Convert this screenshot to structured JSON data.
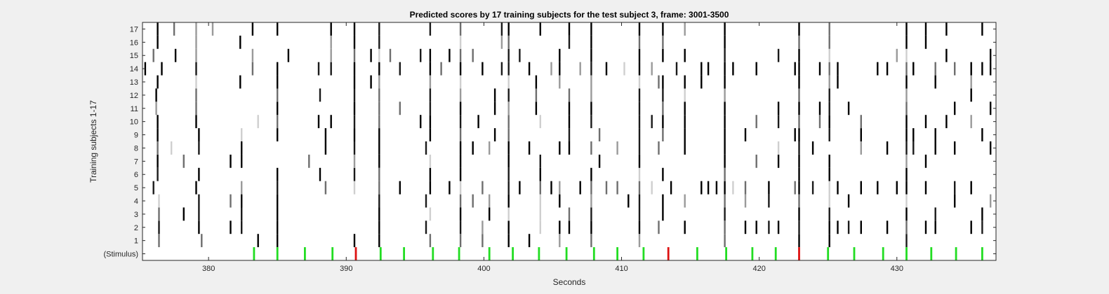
{
  "chart_data": {
    "type": "heatmap",
    "title": "Predicted scores by 17 training subjects for the test subject 3, frame: 3001-3500",
    "xlabel": "Seconds",
    "ylabel": "Training subjects 1-17",
    "xlim": [
      375.2,
      437.2
    ],
    "x_ticks": [
      380,
      390,
      400,
      410,
      420,
      430
    ],
    "y_tick_labels": [
      "(Stimulus)",
      "1",
      "2",
      "3",
      "4",
      "5",
      "6",
      "7",
      "8",
      "9",
      "10",
      "11",
      "12",
      "13",
      "14",
      "15",
      "16",
      "17"
    ],
    "grid": false,
    "legend": "none",
    "colormap": "gray (white = 0, black = 1)",
    "subject_events": [
      {
        "t": 375.4,
        "rows": [
          14
        ]
      },
      {
        "t": 376.0,
        "rows": [
          5,
          15
        ]
      },
      {
        "t": 376.2,
        "rows": [
          11,
          12
        ]
      },
      {
        "t": 376.3,
        "rows": [
          6,
          7,
          8,
          9,
          10,
          13,
          16,
          17
        ]
      },
      {
        "t": 376.4,
        "rows": [
          1,
          2,
          3,
          4
        ]
      },
      {
        "t": 376.6,
        "rows": [
          14
        ]
      },
      {
        "t": 377.3,
        "rows": [
          8
        ]
      },
      {
        "t": 377.5,
        "rows": [
          17
        ]
      },
      {
        "t": 377.6,
        "rows": [
          15
        ]
      },
      {
        "t": 378.2,
        "rows": [
          3,
          7
        ]
      },
      {
        "t": 379.1,
        "rows": [
          5,
          10,
          11,
          12,
          13,
          14,
          15,
          16,
          17
        ]
      },
      {
        "t": 379.3,
        "rows": [
          2,
          3,
          4,
          6,
          8,
          9
        ]
      },
      {
        "t": 379.5,
        "rows": [
          1
        ]
      },
      {
        "t": 380.3,
        "rows": [
          17
        ]
      },
      {
        "t": 381.6,
        "rows": [
          2,
          4,
          7
        ]
      },
      {
        "t": 382.3,
        "rows": [
          13,
          16
        ]
      },
      {
        "t": 382.4,
        "rows": [
          2,
          3,
          4,
          5,
          7,
          8,
          9
        ]
      },
      {
        "t": 383.2,
        "rows": [
          14,
          15,
          17
        ]
      },
      {
        "t": 383.6,
        "rows": [
          1,
          10
        ]
      },
      {
        "t": 385.0,
        "rows": [
          1,
          2,
          3,
          4,
          5,
          6,
          9,
          10,
          11,
          12,
          13,
          14,
          17
        ]
      },
      {
        "t": 385.8,
        "rows": [
          15
        ]
      },
      {
        "t": 387.3,
        "rows": [
          7
        ]
      },
      {
        "t": 388.0,
        "rows": [
          10,
          14
        ]
      },
      {
        "t": 388.1,
        "rows": [
          6,
          12
        ]
      },
      {
        "t": 388.5,
        "rows": [
          5,
          8,
          9
        ]
      },
      {
        "t": 388.9,
        "rows": [
          10,
          14,
          15,
          16,
          17
        ]
      },
      {
        "t": 390.6,
        "rows": [
          1,
          5,
          6,
          7,
          8,
          9,
          10,
          11,
          12,
          13,
          14,
          15,
          16,
          17
        ]
      },
      {
        "t": 391.8,
        "rows": [
          13,
          15
        ]
      },
      {
        "t": 392.4,
        "rows": [
          1,
          2,
          3,
          4,
          5,
          6,
          7,
          8,
          9,
          10,
          11,
          12,
          13,
          14,
          15,
          16,
          17
        ]
      },
      {
        "t": 393.2,
        "rows": [
          15
        ]
      },
      {
        "t": 393.9,
        "rows": [
          5,
          11,
          14
        ]
      },
      {
        "t": 395.4,
        "rows": [
          10,
          15
        ]
      },
      {
        "t": 395.8,
        "rows": [
          2,
          4,
          8
        ]
      },
      {
        "t": 396.1,
        "rows": [
          1,
          3,
          5,
          6,
          7,
          9,
          10,
          11,
          12,
          13,
          14,
          15,
          17
        ]
      },
      {
        "t": 396.9,
        "rows": [
          14
        ]
      },
      {
        "t": 397.5,
        "rows": [
          5,
          15
        ]
      },
      {
        "t": 398.3,
        "rows": [
          1,
          2,
          3,
          4,
          5,
          6,
          7,
          8,
          9,
          10,
          11,
          12,
          13,
          14,
          15,
          16,
          17
        ]
      },
      {
        "t": 399.2,
        "rows": [
          4,
          8,
          15
        ]
      },
      {
        "t": 399.6,
        "rows": [
          10
        ]
      },
      {
        "t": 399.9,
        "rows": [
          1,
          2,
          5,
          14
        ]
      },
      {
        "t": 400.4,
        "rows": [
          3,
          4,
          8
        ]
      },
      {
        "t": 400.8,
        "rows": [
          9,
          11,
          12
        ]
      },
      {
        "t": 401.3,
        "rows": [
          14,
          16,
          17
        ]
      },
      {
        "t": 401.8,
        "rows": [
          1,
          2,
          3,
          4,
          5,
          6,
          7,
          8,
          9,
          10,
          11,
          12,
          13,
          14,
          15,
          16,
          17
        ]
      },
      {
        "t": 402.6,
        "rows": [
          5,
          15
        ]
      },
      {
        "t": 403.3,
        "rows": [
          1,
          8,
          14
        ]
      },
      {
        "t": 403.8,
        "rows": [
          11,
          12,
          13
        ]
      },
      {
        "t": 404.1,
        "rows": [
          2,
          3,
          4,
          5,
          6,
          7,
          10,
          17
        ]
      },
      {
        "t": 404.9,
        "rows": [
          5,
          14
        ]
      },
      {
        "t": 405.5,
        "rows": [
          1,
          2,
          4,
          5,
          8,
          13,
          14,
          15
        ]
      },
      {
        "t": 406.2,
        "rows": [
          2,
          3,
          8,
          9,
          10,
          11,
          12,
          16,
          17
        ]
      },
      {
        "t": 407.0,
        "rows": [
          5,
          14
        ]
      },
      {
        "t": 407.8,
        "rows": [
          1,
          2,
          3,
          4,
          5,
          6,
          8,
          10,
          11,
          12,
          13,
          14,
          15,
          16,
          17
        ]
      },
      {
        "t": 408.4,
        "rows": [
          7,
          9
        ]
      },
      {
        "t": 408.9,
        "rows": [
          5,
          14
        ]
      },
      {
        "t": 409.7,
        "rows": [
          5,
          8
        ]
      },
      {
        "t": 410.2,
        "rows": [
          14
        ]
      },
      {
        "t": 410.5,
        "rows": [
          4
        ]
      },
      {
        "t": 411.3,
        "rows": [
          1,
          2,
          3,
          4,
          5,
          6,
          7,
          8,
          9,
          10,
          11,
          12,
          13,
          14,
          15,
          16,
          17
        ]
      },
      {
        "t": 412.2,
        "rows": [
          5,
          10,
          14
        ]
      },
      {
        "t": 412.7,
        "rows": [
          2,
          8,
          13
        ]
      },
      {
        "t": 413.0,
        "rows": [
          3,
          4,
          6,
          9,
          10,
          11,
          12,
          13,
          15,
          16,
          17
        ]
      },
      {
        "t": 413.6,
        "rows": [
          5
        ]
      },
      {
        "t": 414.0,
        "rows": [
          14
        ]
      },
      {
        "t": 414.6,
        "rows": [
          2,
          4,
          8,
          9,
          10,
          11,
          12,
          13,
          15,
          17
        ]
      },
      {
        "t": 415.8,
        "rows": [
          5,
          13,
          14
        ]
      },
      {
        "t": 416.3,
        "rows": [
          5,
          14
        ]
      },
      {
        "t": 416.9,
        "rows": [
          5
        ]
      },
      {
        "t": 417.5,
        "rows": [
          1,
          2,
          3,
          4,
          5,
          6,
          7,
          8,
          9,
          10,
          11,
          12,
          13,
          14,
          15,
          16,
          17
        ]
      },
      {
        "t": 418.1,
        "rows": [
          5,
          14
        ]
      },
      {
        "t": 419.0,
        "rows": [
          2,
          4,
          5,
          9
        ]
      },
      {
        "t": 419.8,
        "rows": [
          2,
          7,
          10,
          14
        ]
      },
      {
        "t": 420.7,
        "rows": [
          2,
          4,
          5
        ]
      },
      {
        "t": 421.4,
        "rows": [
          2,
          7,
          8,
          10,
          11,
          15
        ]
      },
      {
        "t": 422.6,
        "rows": [
          5,
          9,
          14
        ]
      },
      {
        "t": 422.9,
        "rows": [
          1,
          2,
          3,
          4,
          5,
          6,
          7,
          8,
          9,
          10,
          11,
          12,
          13,
          14,
          15,
          16,
          17
        ]
      },
      {
        "t": 423.9,
        "rows": [
          5,
          8
        ]
      },
      {
        "t": 424.4,
        "rows": [
          10,
          11,
          14
        ]
      },
      {
        "t": 425.1,
        "rows": [
          1,
          2,
          3,
          4,
          5,
          6,
          7,
          9,
          10,
          11,
          12,
          13,
          14,
          15,
          16,
          17
        ]
      },
      {
        "t": 425.7,
        "rows": [
          2,
          5,
          13,
          14
        ]
      },
      {
        "t": 426.5,
        "rows": [
          2,
          4,
          11
        ]
      },
      {
        "t": 427.4,
        "rows": [
          2,
          5,
          8,
          9,
          10
        ]
      },
      {
        "t": 428.6,
        "rows": [
          5,
          14
        ]
      },
      {
        "t": 429.3,
        "rows": [
          2,
          8,
          14
        ]
      },
      {
        "t": 430.0,
        "rows": [
          5,
          15
        ]
      },
      {
        "t": 430.7,
        "rows": [
          1,
          2,
          3,
          4,
          5,
          6,
          7,
          8,
          9,
          10,
          11,
          12,
          13,
          14,
          15,
          16,
          17
        ]
      },
      {
        "t": 431.2,
        "rows": [
          8,
          9,
          14
        ]
      },
      {
        "t": 432.1,
        "rows": [
          2,
          5,
          7,
          10,
          16,
          17
        ]
      },
      {
        "t": 432.8,
        "rows": [
          2,
          3,
          8,
          9,
          13,
          14
        ]
      },
      {
        "t": 433.6,
        "rows": [
          10,
          15,
          17
        ]
      },
      {
        "t": 434.2,
        "rows": [
          4,
          5,
          8,
          11,
          14
        ]
      },
      {
        "t": 435.4,
        "rows": [
          2,
          5,
          10,
          12,
          13,
          14
        ]
      },
      {
        "t": 436.2,
        "rows": [
          2,
          3,
          9,
          14,
          17
        ]
      },
      {
        "t": 436.8,
        "rows": [
          4,
          8,
          11,
          14,
          15
        ]
      }
    ],
    "stimulus_events": [
      {
        "t": 383.3,
        "color": "#22dd22"
      },
      {
        "t": 385.0,
        "color": "#22dd22"
      },
      {
        "t": 387.0,
        "color": "#22dd22"
      },
      {
        "t": 389.0,
        "color": "#22dd22"
      },
      {
        "t": 390.7,
        "color": "#dd1111"
      },
      {
        "t": 392.5,
        "color": "#22dd22"
      },
      {
        "t": 394.2,
        "color": "#22dd22"
      },
      {
        "t": 396.3,
        "color": "#22dd22"
      },
      {
        "t": 398.2,
        "color": "#22dd22"
      },
      {
        "t": 400.4,
        "color": "#22dd22"
      },
      {
        "t": 402.1,
        "color": "#22dd22"
      },
      {
        "t": 404.0,
        "color": "#22dd22"
      },
      {
        "t": 406.0,
        "color": "#22dd22"
      },
      {
        "t": 408.0,
        "color": "#22dd22"
      },
      {
        "t": 409.7,
        "color": "#22dd22"
      },
      {
        "t": 411.6,
        "color": "#22dd22"
      },
      {
        "t": 413.4,
        "color": "#dd1111"
      },
      {
        "t": 415.5,
        "color": "#22dd22"
      },
      {
        "t": 417.6,
        "color": "#22dd22"
      },
      {
        "t": 419.5,
        "color": "#22dd22"
      },
      {
        "t": 421.2,
        "color": "#22dd22"
      },
      {
        "t": 422.9,
        "color": "#dd1111"
      },
      {
        "t": 425.0,
        "color": "#22dd22"
      },
      {
        "t": 426.9,
        "color": "#22dd22"
      },
      {
        "t": 429.0,
        "color": "#22dd22"
      },
      {
        "t": 430.7,
        "color": "#22dd22"
      },
      {
        "t": 432.5,
        "color": "#22dd22"
      },
      {
        "t": 434.3,
        "color": "#22dd22"
      },
      {
        "t": 436.2,
        "color": "#22dd22"
      }
    ]
  }
}
